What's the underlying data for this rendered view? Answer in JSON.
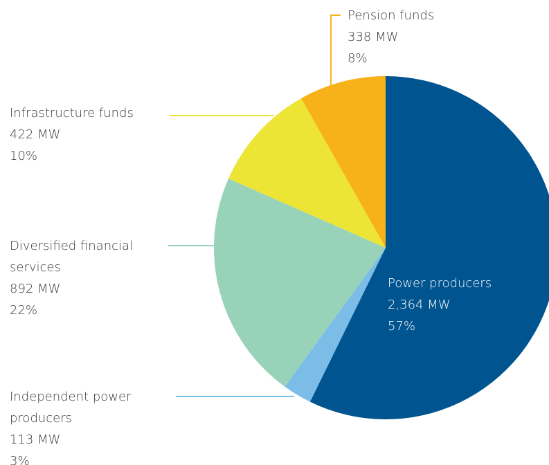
{
  "chart_data": {
    "type": "pie",
    "categories": [
      "Power producers",
      "Independent power producers",
      "Diversified financial services",
      "Infrastructure funds",
      "Pension funds"
    ],
    "values": [
      2364,
      113,
      892,
      422,
      338
    ],
    "value_labels": [
      "2,364 MW",
      "113 MW",
      "892 MW",
      "422 MW",
      "338 MW"
    ],
    "percents": [
      57,
      3,
      22,
      10,
      8
    ],
    "percent_labels": [
      "57%",
      "3%",
      "22%",
      "10%",
      "8%"
    ],
    "colors": [
      "#00548f",
      "#7bbde6",
      "#98d3b9",
      "#ece535",
      "#f8b219"
    ]
  }
}
